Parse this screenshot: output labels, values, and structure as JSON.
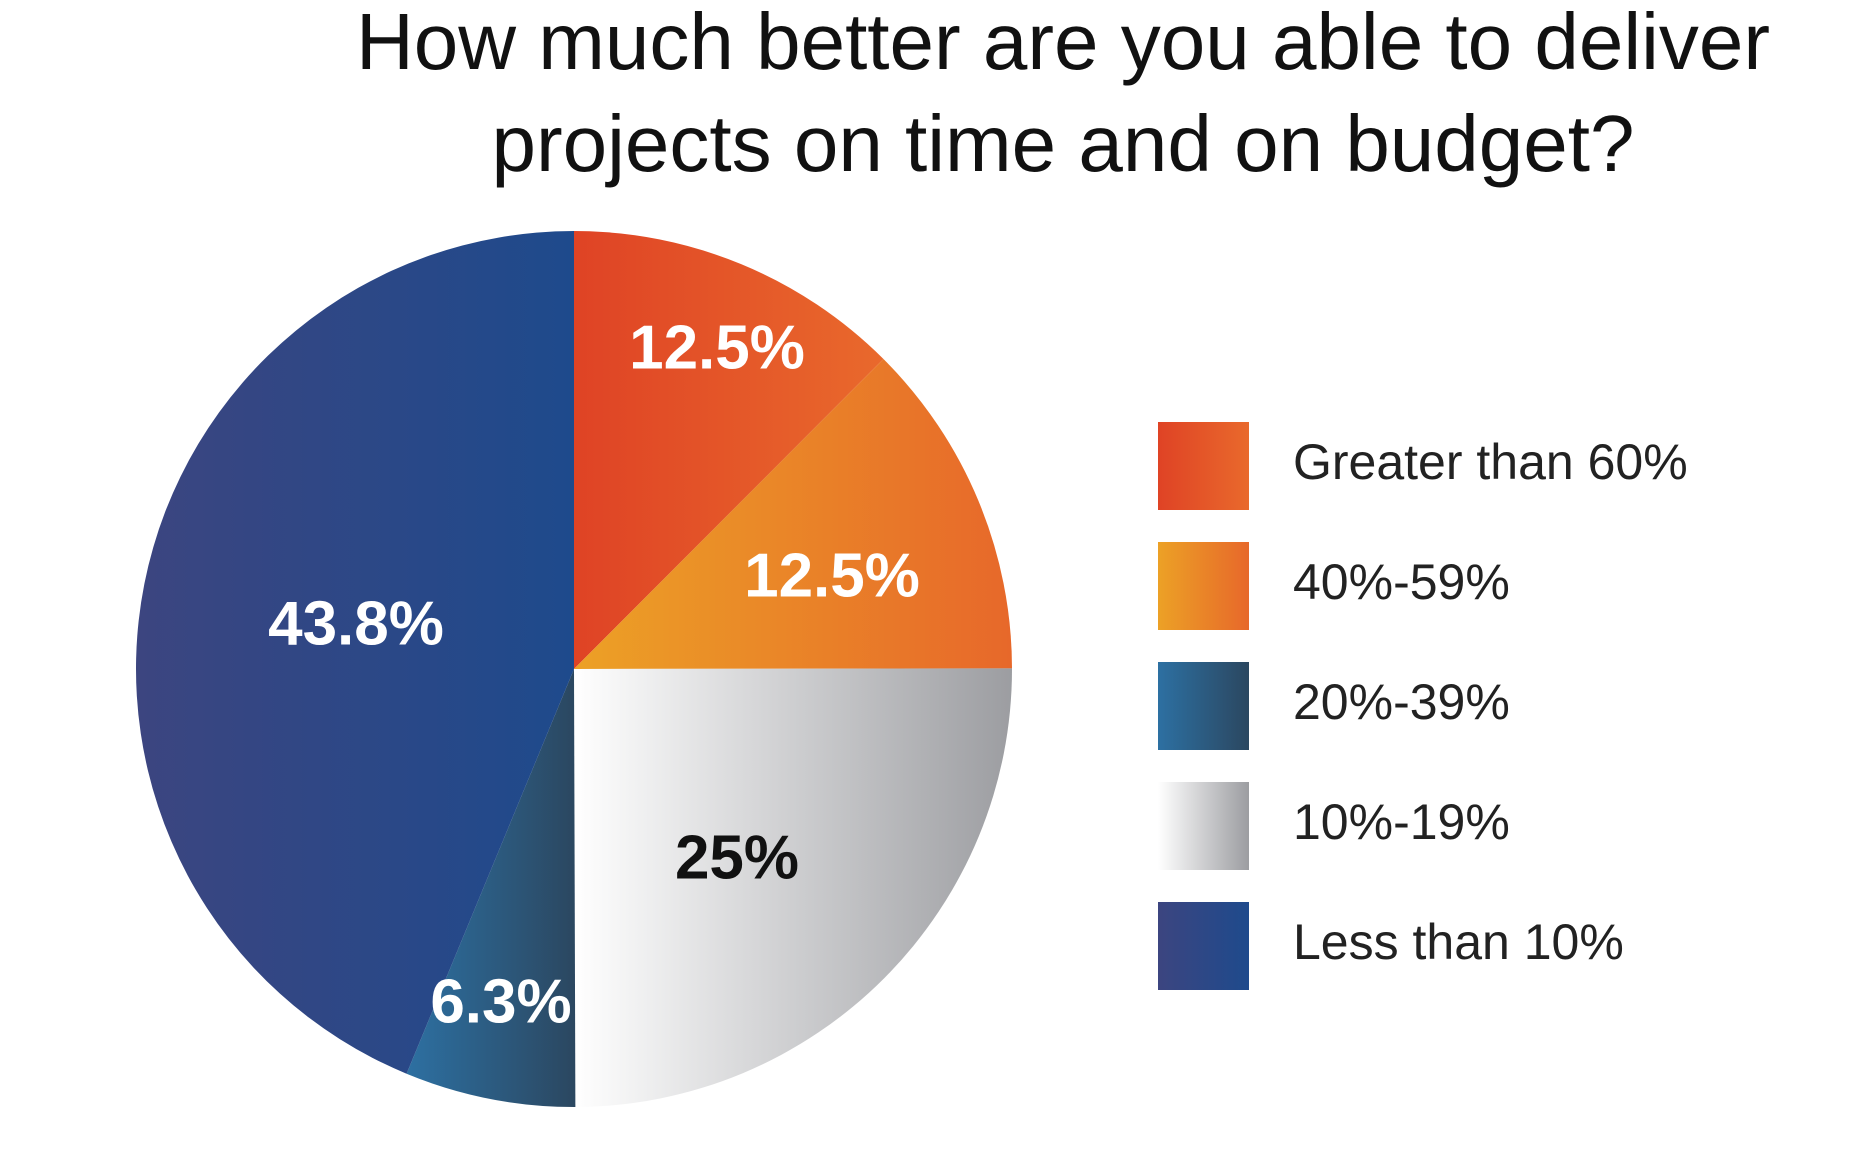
{
  "chart_data": {
    "type": "pie",
    "title": [
      "How much better are you able to deliver",
      "projects on time and on budget?"
    ],
    "categories": [
      "Greater than 60%",
      "40%-59%",
      "10%-19%",
      "20%-39%",
      "Less than 10%"
    ],
    "values": [
      12.5,
      12.5,
      25,
      6.3,
      43.8
    ],
    "value_labels": [
      "12.5%",
      "12.5%",
      "25%",
      "6.3%",
      "43.8%"
    ],
    "colors": [
      [
        "#df4325",
        "#e9692c"
      ],
      [
        "#eca126",
        "#e7682a"
      ],
      [
        "#ffffff",
        "#9c9da1"
      ],
      [
        "#2d70a2",
        "#2b4760"
      ],
      [
        "#3c4580",
        "#1e4a8c"
      ]
    ],
    "legend_order": [
      0,
      1,
      3,
      2,
      4
    ]
  }
}
